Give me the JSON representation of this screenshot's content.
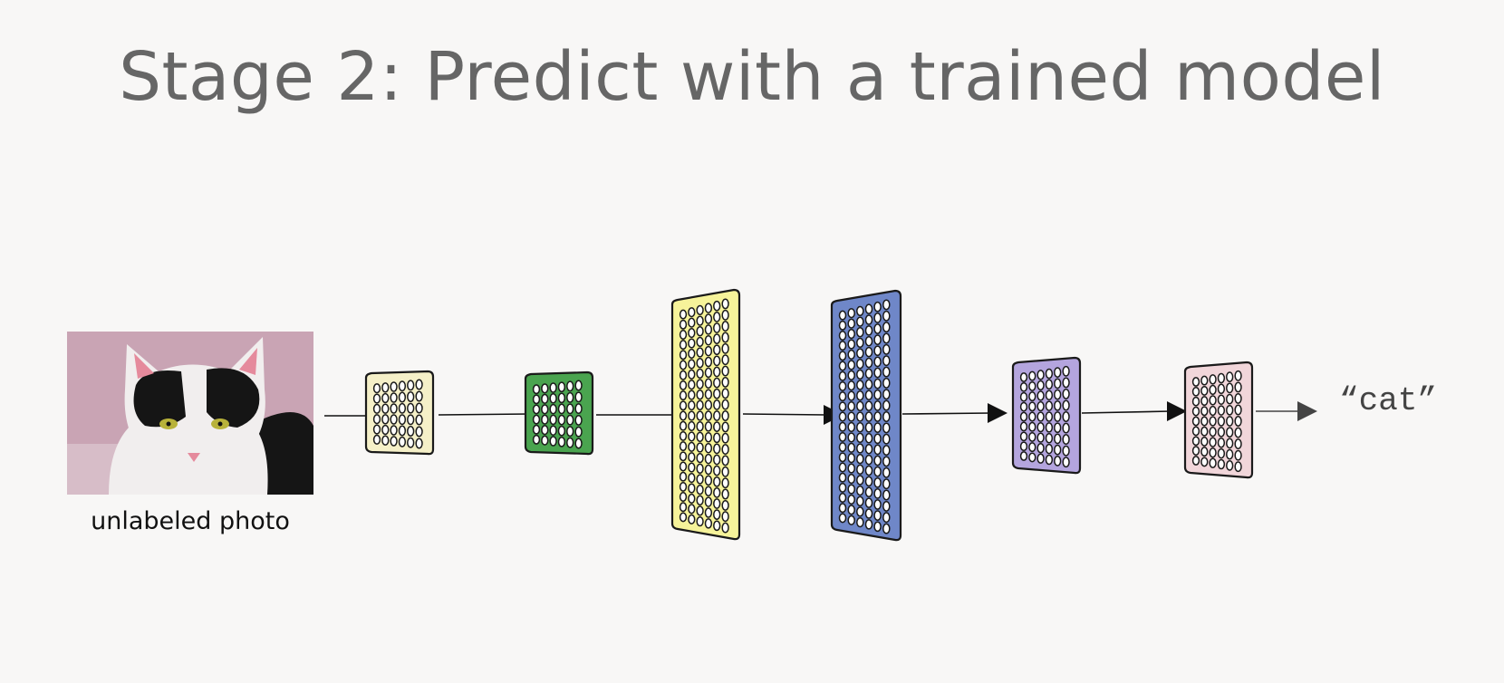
{
  "title": "Stage 2: Predict with a trained model",
  "input": {
    "label": "unlabeled photo",
    "image_icon": "cat-photo",
    "colors": {
      "background": "#c9a4b4",
      "fur_white": "#f1eeee",
      "fur_black": "#151515",
      "eye": "#b8b23a",
      "nose": "#e58a9c"
    }
  },
  "output": {
    "label": "“cat”"
  },
  "layers": [
    {
      "name": "layer-1",
      "color": "#f5f0c8",
      "rows": 6,
      "cols": 6
    },
    {
      "name": "layer-2",
      "color": "#4aa44f",
      "rows": 6,
      "cols": 6
    },
    {
      "name": "layer-3",
      "color": "#f6f39a",
      "rows": 21,
      "cols": 6
    },
    {
      "name": "layer-4",
      "color": "#6f87c8",
      "rows": 21,
      "cols": 6
    },
    {
      "name": "layer-5",
      "color": "#b4a5de",
      "rows": 9,
      "cols": 6
    },
    {
      "name": "layer-6",
      "color": "#f1d6da",
      "rows": 9,
      "cols": 6
    }
  ],
  "colors": {
    "background": "#f8f7f6",
    "title": "#666666",
    "arrow": "#111111",
    "outline": "#1a1a1a",
    "node_fill": "#ffffff"
  }
}
